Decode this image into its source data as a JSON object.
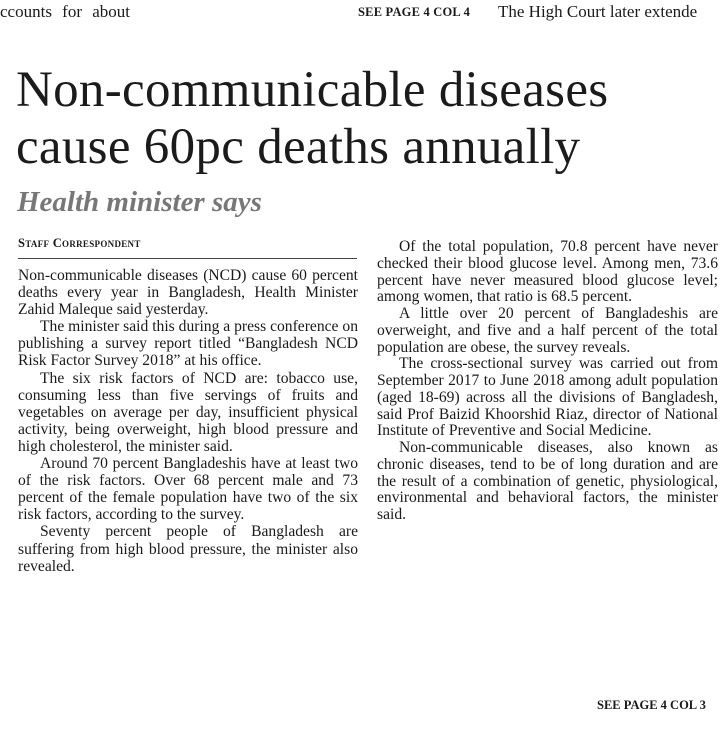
{
  "top_strip": {
    "left_fragment": "ccounts for about",
    "jump_label": "SEE PAGE 4 COL 4",
    "right_fragment": "The High Court later extende"
  },
  "article": {
    "headline_line1": "Non-communicable diseases",
    "headline_line2": "cause 60pc deaths annually",
    "subheadline": "Health minister says",
    "byline": "Staff Correspondent",
    "left_paragraphs": [
      "Non-communicable diseases (NCD) cause 60 percent deaths every year in Bangladesh, Health Minister Zahid Maleque said yesterday.",
      "The minister said this during a press conference on publishing a survey report titled “Bangladesh NCD Risk Factor Survey 2018” at his office.",
      "The six risk factors of NCD are: tobacco use, consuming less than five servings of fruits and vegetables on average per day, insufficient physical activity, being overweight, high blood pressure and high cholesterol, the minister said.",
      "Around 70 percent Bangladeshis have at least two of the risk factors. Over 68 percent male and 73 percent of the female population have two of the six risk factors, according to the survey.",
      "Seventy percent people of Bangladesh are suffering from high blood pressure, the minister also revealed."
    ],
    "right_paragraphs": [
      "Of the total population, 70.8 percent have never checked their blood glucose level. Among men, 73.6 percent have never measured blood glucose level; among women, that ratio is 68.5 percent.",
      "A little over 20 percent of Bangladeshis are overweight, and five and a half percent of the total population are obese, the survey reveals.",
      "The cross-sectional survey was carried out from September 2017 to June 2018 among adult population (aged 18-69) across all the divisions of Bangladesh, said Prof Baizid Khoorshid Riaz, director of National Institute of Preventive and Social Medicine.",
      "Non-communicable diseases, also known as chronic diseases, tend to be of long duration and are the result of a combination of genetic, physiological, environmental and behavioral factors, the minister said."
    ],
    "jump_label": "SEE PAGE 4 COL 3"
  }
}
